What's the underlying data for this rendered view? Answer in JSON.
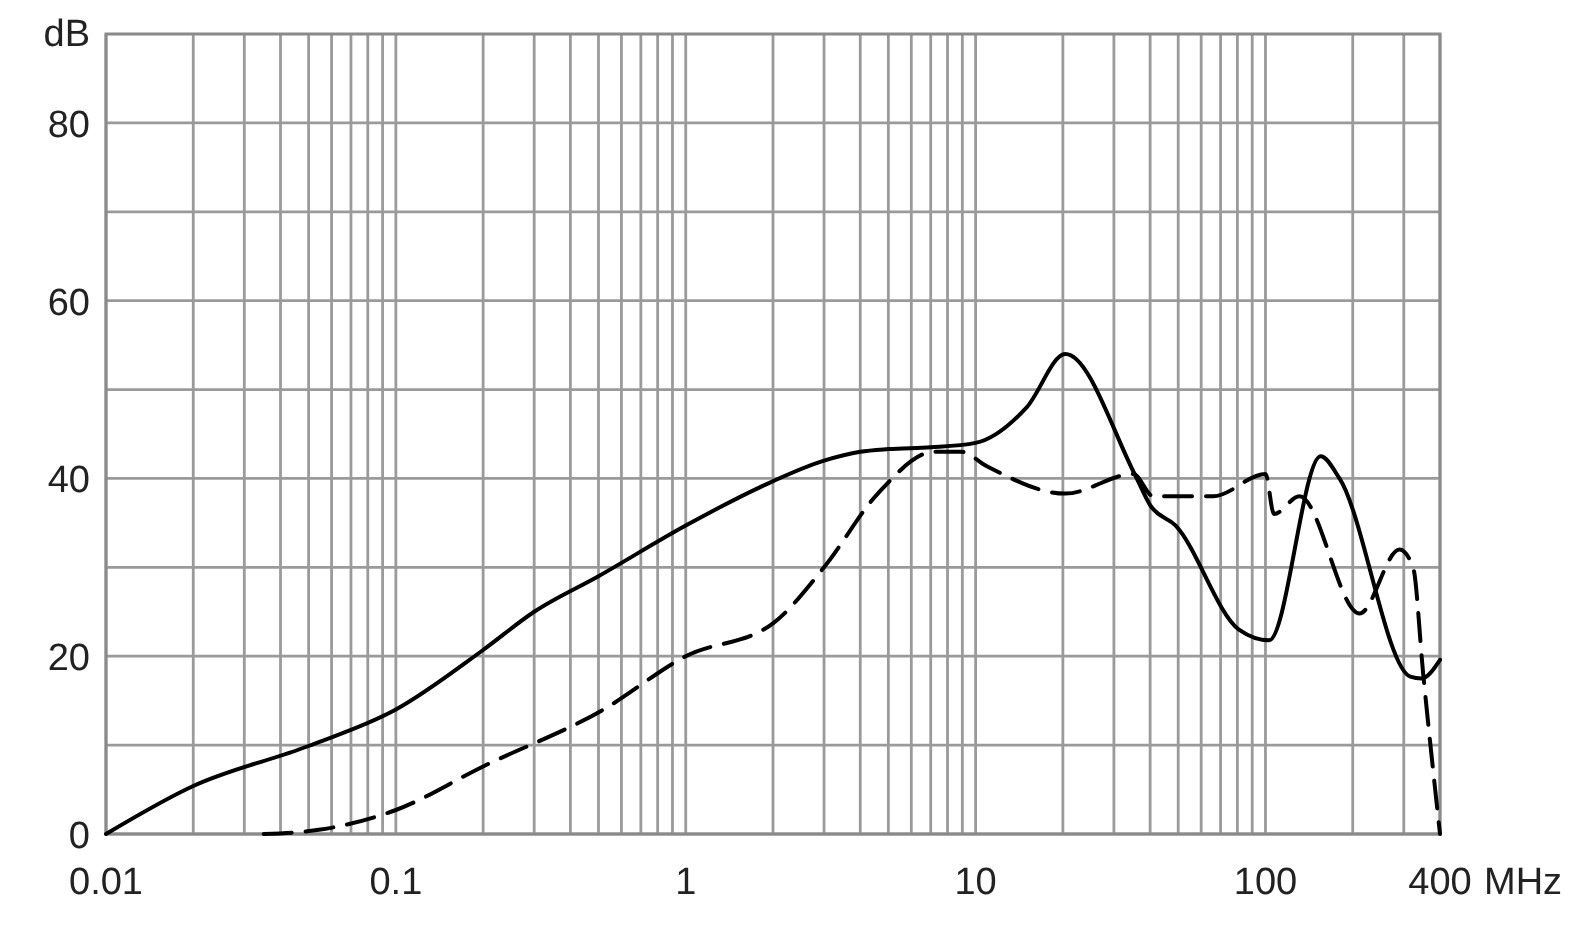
{
  "chart_data": {
    "type": "line",
    "ylabel": "dB",
    "xlabel": "MHz",
    "log": "x",
    "grid": true,
    "marker": "none",
    "xlim": [
      0.01,
      400
    ],
    "ylim": [
      0,
      90
    ],
    "xticks": [
      0.01,
      {
        "value": 0.02,
        "label": null
      },
      {
        "value": 0.03,
        "label": null
      },
      {
        "value": 0.04,
        "label": null
      },
      {
        "value": 0.05,
        "label": null
      },
      {
        "value": 0.06,
        "label": null
      },
      {
        "value": 0.07,
        "label": null
      },
      {
        "value": 0.08,
        "label": null
      },
      {
        "value": 0.09,
        "label": null
      },
      0.1,
      {
        "value": 0.2,
        "label": null
      },
      {
        "value": 0.3,
        "label": null
      },
      {
        "value": 0.4,
        "label": null
      },
      {
        "value": 0.5,
        "label": null
      },
      {
        "value": 0.6,
        "label": null
      },
      {
        "value": 0.7,
        "label": null
      },
      {
        "value": 0.8,
        "label": null
      },
      {
        "value": 0.9,
        "label": null
      },
      1,
      {
        "value": 2,
        "label": null
      },
      {
        "value": 3,
        "label": null
      },
      {
        "value": 4,
        "label": null
      },
      {
        "value": 5,
        "label": null
      },
      {
        "value": 6,
        "label": null
      },
      {
        "value": 7,
        "label": null
      },
      {
        "value": 8,
        "label": null
      },
      {
        "value": 9,
        "label": null
      },
      10,
      {
        "value": 20,
        "label": null
      },
      {
        "value": 30,
        "label": null
      },
      {
        "value": 40,
        "label": null
      },
      {
        "value": 50,
        "label": null
      },
      {
        "value": 60,
        "label": null
      },
      {
        "value": 70,
        "label": null
      },
      {
        "value": 80,
        "label": null
      },
      {
        "value": 90,
        "label": null
      },
      100,
      {
        "value": 200,
        "label": null
      },
      {
        "value": 300,
        "label": null
      },
      400
    ],
    "yticks": [
      0,
      {
        "value": 10,
        "label": null
      },
      20,
      {
        "value": 30,
        "label": null
      },
      40,
      {
        "value": 50,
        "label": null
      },
      60,
      {
        "value": 70,
        "label": null
      },
      80
    ],
    "series": [
      {
        "color": "#000000",
        "line_style": "solid",
        "x": [
          0.01,
          0.02,
          0.05,
          0.1,
          0.2,
          0.3,
          0.5,
          1,
          1.8,
          3,
          4,
          5,
          7,
          10,
          15,
          20.4,
          35.6,
          40,
          49,
          81,
          103,
          155,
          180,
          316,
          345,
          400
        ],
        "values": [
          0,
          5.4,
          9.9,
          14,
          20.7,
          25,
          29,
          34.7,
          39,
          42,
          43,
          43.3,
          43.5,
          44,
          48,
          54,
          40.3,
          37,
          34.7,
          23,
          21.8,
          42.5,
          40,
          17.7,
          17.5,
          19.6
        ]
      },
      {
        "color": "#000000",
        "line_style": "dashed",
        "x": [
          0.035,
          0.055,
          0.1,
          0.2,
          0.52,
          1,
          2,
          3,
          4.6,
          7.2,
          8.9,
          10.9,
          20.4,
          35,
          41,
          66,
          100,
          107,
          131,
          211,
          290,
          323,
          350,
          400
        ],
        "values": [
          0,
          0.5,
          2.7,
          7.6,
          14,
          20,
          23.7,
          30,
          38.3,
          43,
          43,
          41.4,
          38.3,
          40.5,
          38,
          38,
          40.5,
          36,
          38,
          24.8,
          32,
          30,
          18,
          0
        ]
      }
    ]
  }
}
